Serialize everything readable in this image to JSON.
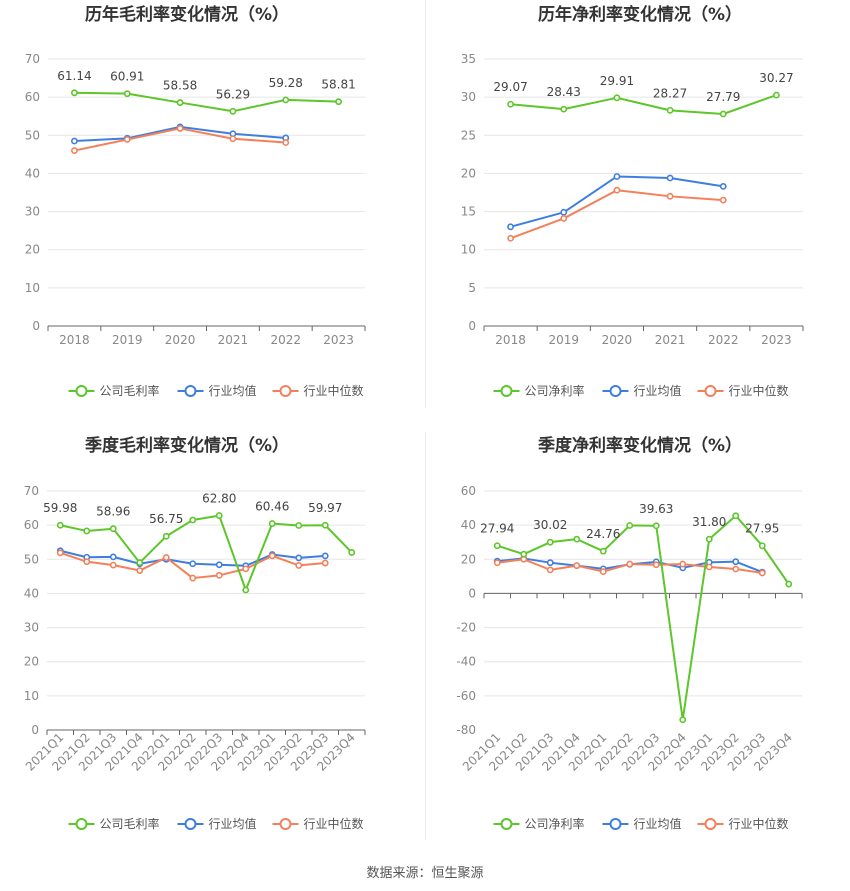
{
  "colors": {
    "company": "#5cc62a",
    "industry_avg": "#3f7ee0",
    "industry_median": "#f4805a",
    "grid": "#e6e6e6",
    "axis": "#aaaaaa",
    "tick_text": "#888888",
    "label_text": "#444444",
    "title_text": "#333333"
  },
  "legend": {
    "company_gross": "公司毛利率",
    "company_net": "公司净利率",
    "industry_avg": "行业均值",
    "industry_median": "行业中位数"
  },
  "source_text": "数据来源：恒生聚源",
  "chart_data": [
    {
      "id": "annual-gross",
      "type": "line",
      "title": "历年毛利率变化情况（%）",
      "categories": [
        "2018",
        "2019",
        "2020",
        "2021",
        "2022",
        "2023"
      ],
      "ylim": [
        0,
        70
      ],
      "yticks": [
        0,
        10,
        20,
        30,
        40,
        50,
        60,
        70
      ],
      "series": [
        {
          "name": "公司毛利率",
          "role": "company",
          "values": [
            61.14,
            60.91,
            58.58,
            56.29,
            59.28,
            58.81
          ]
        },
        {
          "name": "行业均值",
          "role": "industry_avg",
          "values": [
            48.5,
            49.2,
            52.2,
            50.4,
            49.3,
            null
          ]
        },
        {
          "name": "行业中位数",
          "role": "industry_median",
          "values": [
            46.0,
            48.9,
            51.8,
            49.1,
            48.1,
            null
          ]
        }
      ],
      "point_labels": [
        "61.14",
        "60.91",
        "58.58",
        "56.29",
        "59.28",
        "58.81"
      ],
      "legend_labels": [
        "公司毛利率",
        "行业均值",
        "行业中位数"
      ]
    },
    {
      "id": "annual-net",
      "type": "line",
      "title": "历年净利率变化情况（%）",
      "categories": [
        "2018",
        "2019",
        "2020",
        "2021",
        "2022",
        "2023"
      ],
      "ylim": [
        0,
        35
      ],
      "yticks": [
        0,
        5,
        10,
        15,
        20,
        25,
        30,
        35
      ],
      "series": [
        {
          "name": "公司净利率",
          "role": "company",
          "values": [
            29.07,
            28.43,
            29.91,
            28.27,
            27.79,
            30.27
          ]
        },
        {
          "name": "行业均值",
          "role": "industry_avg",
          "values": [
            13.0,
            14.9,
            19.6,
            19.4,
            18.3,
            null
          ]
        },
        {
          "name": "行业中位数",
          "role": "industry_median",
          "values": [
            11.5,
            14.1,
            17.8,
            17.0,
            16.5,
            null
          ]
        }
      ],
      "point_labels": [
        "29.07",
        "28.43",
        "29.91",
        "28.27",
        "27.79",
        "30.27"
      ],
      "legend_labels": [
        "公司净利率",
        "行业均值",
        "行业中位数"
      ]
    },
    {
      "id": "quarterly-gross",
      "type": "line",
      "title": "季度毛利率变化情况（%）",
      "categories": [
        "2021Q1",
        "2021Q2",
        "2021Q3",
        "2021Q4",
        "2022Q1",
        "2022Q2",
        "2022Q3",
        "2022Q4",
        "2023Q1",
        "2023Q2",
        "2023Q3",
        "2023Q4"
      ],
      "ylim": [
        0,
        70
      ],
      "yticks": [
        0,
        10,
        20,
        30,
        40,
        50,
        60,
        70
      ],
      "series": [
        {
          "name": "公司毛利率",
          "role": "company",
          "values": [
            59.98,
            58.3,
            58.96,
            49.0,
            56.75,
            61.5,
            62.8,
            41.0,
            60.46,
            59.9,
            59.97,
            52.0
          ]
        },
        {
          "name": "行业均值",
          "role": "industry_avg",
          "values": [
            52.5,
            50.6,
            50.7,
            48.7,
            50.0,
            48.7,
            48.4,
            48.1,
            51.4,
            50.4,
            51.0,
            null
          ]
        },
        {
          "name": "行业中位数",
          "role": "industry_median",
          "values": [
            51.9,
            49.3,
            48.3,
            46.7,
            50.5,
            44.5,
            45.3,
            47.2,
            51.0,
            48.2,
            48.9,
            null
          ]
        }
      ],
      "point_labels": [
        "59.98",
        "",
        "58.96",
        "",
        "56.75",
        "",
        "62.80",
        "",
        "60.46",
        "",
        "59.97",
        ""
      ],
      "legend_labels": [
        "公司毛利率",
        "行业均值",
        "行业中位数"
      ]
    },
    {
      "id": "quarterly-net",
      "type": "line",
      "title": "季度净利率变化情况（%）",
      "categories": [
        "2021Q1",
        "2021Q2",
        "2021Q3",
        "2021Q4",
        "2022Q1",
        "2022Q2",
        "2022Q3",
        "2022Q4",
        "2023Q1",
        "2023Q2",
        "2023Q3",
        "2023Q4"
      ],
      "ylim": [
        -80,
        60
      ],
      "yticks": [
        -80,
        -60,
        -40,
        -20,
        0,
        20,
        40,
        60
      ],
      "series": [
        {
          "name": "公司净利率",
          "role": "company",
          "values": [
            27.94,
            23.0,
            30.02,
            31.8,
            24.76,
            39.8,
            39.63,
            -74.0,
            31.8,
            45.5,
            27.95,
            5.5
          ]
        },
        {
          "name": "行业均值",
          "role": "industry_avg",
          "values": [
            18.9,
            20.5,
            18.0,
            16.3,
            14.4,
            17.0,
            18.5,
            15.0,
            18.2,
            18.6,
            12.5,
            null
          ]
        },
        {
          "name": "行业中位数",
          "role": "industry_median",
          "values": [
            18.0,
            20.0,
            13.8,
            16.3,
            12.8,
            17.2,
            16.8,
            17.2,
            15.5,
            14.3,
            12.0,
            null
          ]
        }
      ],
      "point_labels": [
        "27.94",
        "",
        "30.02",
        "",
        "24.76",
        "",
        "39.63",
        "",
        "31.80",
        "",
        "27.95",
        ""
      ],
      "legend_labels": [
        "公司净利率",
        "行业均值",
        "行业中位数"
      ]
    }
  ]
}
